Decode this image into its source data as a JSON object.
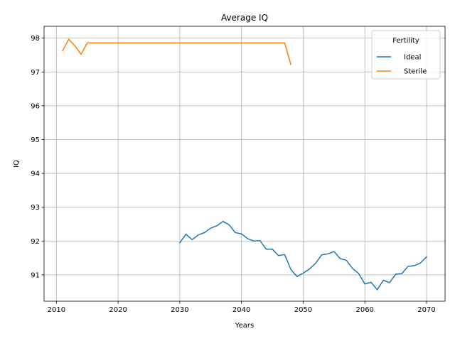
{
  "chart_data": {
    "type": "line",
    "title": "Average IQ",
    "xlabel": "Years",
    "ylabel": "IQ",
    "xlim": [
      2008,
      2073
    ],
    "ylim": [
      90.22,
      98.35
    ],
    "xticks": [
      2010,
      2020,
      2030,
      2040,
      2050,
      2060,
      2070
    ],
    "xtick_labels": [
      "2010",
      "2020",
      "2030",
      "2040",
      "2050",
      "2060",
      "2070"
    ],
    "yticks": [
      91,
      92,
      93,
      94,
      95,
      96,
      97,
      98
    ],
    "ytick_labels": [
      "91",
      "92",
      "93",
      "94",
      "95",
      "96",
      "97",
      "98"
    ],
    "grid": true,
    "legend": {
      "title": "Fertility",
      "position": "top-right"
    },
    "series": [
      {
        "name": "Ideal",
        "color": "#1f77b4",
        "x": [
          2030,
          2031,
          2032,
          2033,
          2034,
          2035,
          2036,
          2037,
          2038,
          2039,
          2040,
          2041,
          2042,
          2043,
          2044,
          2045,
          2046,
          2047,
          2048,
          2049,
          2050,
          2051,
          2052,
          2053,
          2054,
          2055,
          2056,
          2057,
          2058,
          2059,
          2060,
          2061,
          2062,
          2063,
          2064,
          2065,
          2066,
          2067,
          2068,
          2069,
          2070
        ],
        "y": [
          91.95,
          92.2,
          92.04,
          92.18,
          92.25,
          92.38,
          92.45,
          92.58,
          92.48,
          92.25,
          92.21,
          92.07,
          92.0,
          92.01,
          91.76,
          91.76,
          91.57,
          91.6,
          91.16,
          90.95,
          91.05,
          91.17,
          91.34,
          91.59,
          91.62,
          91.69,
          91.48,
          91.43,
          91.19,
          91.04,
          90.73,
          90.78,
          90.56,
          90.84,
          90.77,
          91.02,
          91.04,
          91.25,
          91.27,
          91.35,
          91.53
        ]
      },
      {
        "name": "Sterile",
        "color": "#ff7f0e",
        "x": [
          2011,
          2012,
          2013,
          2014,
          2015,
          2016,
          2017,
          2018,
          2019,
          2020,
          2021,
          2022,
          2023,
          2024,
          2025,
          2026,
          2027,
          2028,
          2029,
          2030,
          2031,
          2032,
          2033,
          2034,
          2035,
          2036,
          2037,
          2038,
          2039,
          2040,
          2041,
          2042,
          2043,
          2044,
          2045,
          2046,
          2047,
          2048
        ],
        "y": [
          97.62,
          97.97,
          97.77,
          97.52,
          97.86,
          97.86,
          97.86,
          97.86,
          97.86,
          97.86,
          97.86,
          97.86,
          97.86,
          97.86,
          97.86,
          97.86,
          97.86,
          97.86,
          97.86,
          97.86,
          97.86,
          97.86,
          97.86,
          97.86,
          97.86,
          97.86,
          97.86,
          97.86,
          97.86,
          97.86,
          97.86,
          97.86,
          97.86,
          97.86,
          97.86,
          97.86,
          97.86,
          97.22
        ]
      }
    ]
  }
}
